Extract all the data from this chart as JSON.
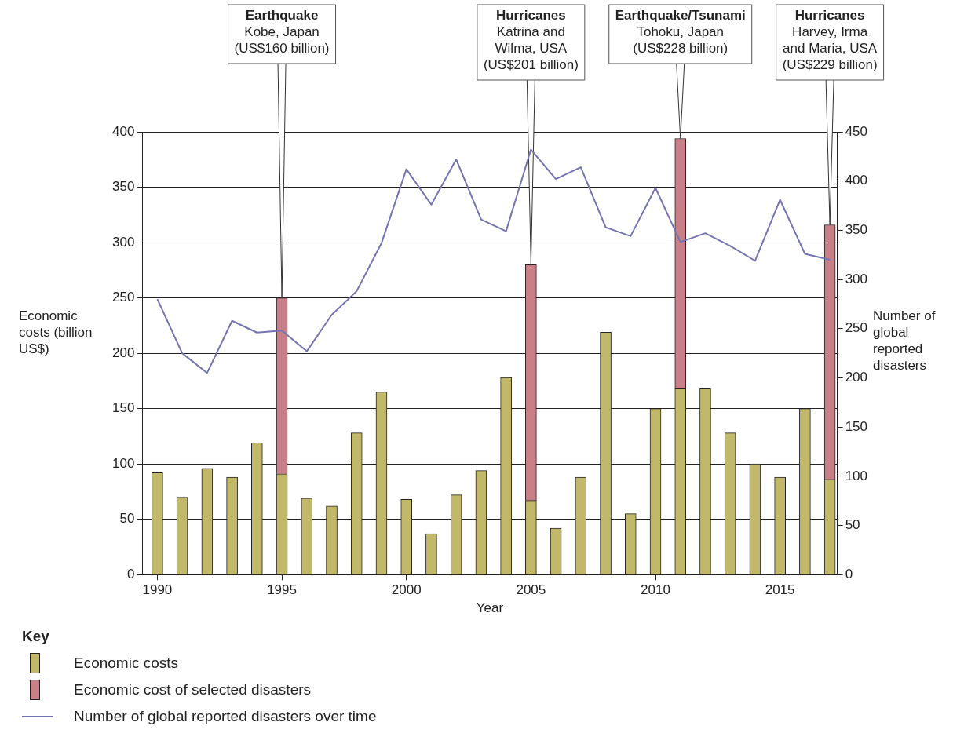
{
  "chart_data": {
    "type": "bar",
    "xlabel": "Year",
    "ylabel": "Economic costs (billion US$)",
    "y2label": "Number of global reported disasters",
    "legend_title": "Key",
    "legend": "bottom left",
    "grid": "y",
    "stacked": true,
    "marker": "none",
    "x": [
      1990,
      1991,
      1992,
      1993,
      1994,
      1995,
      1996,
      1997,
      1998,
      1999,
      2000,
      2001,
      2002,
      2003,
      2004,
      2005,
      2006,
      2007,
      2008,
      2009,
      2010,
      2011,
      2012,
      2013,
      2014,
      2015,
      2016,
      2017
    ],
    "xlim": [
      1989.4,
      2017.3
    ],
    "xticks": [
      1990,
      1995,
      2000,
      2005,
      2010,
      2015
    ],
    "ylim": [
      0,
      400
    ],
    "yticks": [
      0,
      50,
      100,
      150,
      200,
      250,
      300,
      350,
      400
    ],
    "y2lim": [
      0,
      450
    ],
    "y2ticks": [
      0,
      50,
      100,
      150,
      200,
      250,
      300,
      350,
      400,
      450
    ],
    "series": [
      {
        "name": "Economic costs",
        "color": "#c2b86a",
        "values": [
          92,
          70,
          96,
          88,
          119,
          91,
          69,
          62,
          128,
          165,
          68,
          37,
          72,
          94,
          178,
          67,
          42,
          88,
          219,
          55,
          150,
          168,
          168,
          128,
          100,
          88,
          150,
          86
        ]
      },
      {
        "name": "Economic cost of selected disasters",
        "color": "#c97f88",
        "values": [
          null,
          null,
          null,
          null,
          null,
          159,
          null,
          null,
          null,
          null,
          null,
          null,
          null,
          null,
          null,
          213,
          null,
          null,
          null,
          null,
          null,
          226,
          null,
          null,
          null,
          null,
          null,
          230
        ]
      },
      {
        "name": "Number of global reported disasters over time",
        "type": "line",
        "axis": "y2",
        "color": "#7474b0",
        "values": [
          280,
          225,
          205,
          258,
          246,
          248,
          227,
          264,
          288,
          337,
          412,
          376,
          422,
          361,
          349,
          432,
          402,
          414,
          353,
          344,
          393,
          338,
          347,
          334,
          319,
          381,
          326,
          320
        ]
      }
    ],
    "annotations": [
      {
        "text": "Earthquake\nKobe, Japan\n(US$160 billion)",
        "x": 1995,
        "y": 250
      },
      {
        "text": "Hurricanes\nKatrina and\nWilma, USA\n(US$201 billion)",
        "x": 2005,
        "y": 280
      },
      {
        "text": "Earthquake/Tsunami\nTohoku, Japan\n(US$228 billion)",
        "x": 2011,
        "y": 394
      },
      {
        "text": "Hurricanes\nHarvey, Irma\nand Maria, USA\n(US$229 billion)",
        "x": 2017,
        "y": 316
      }
    ]
  }
}
